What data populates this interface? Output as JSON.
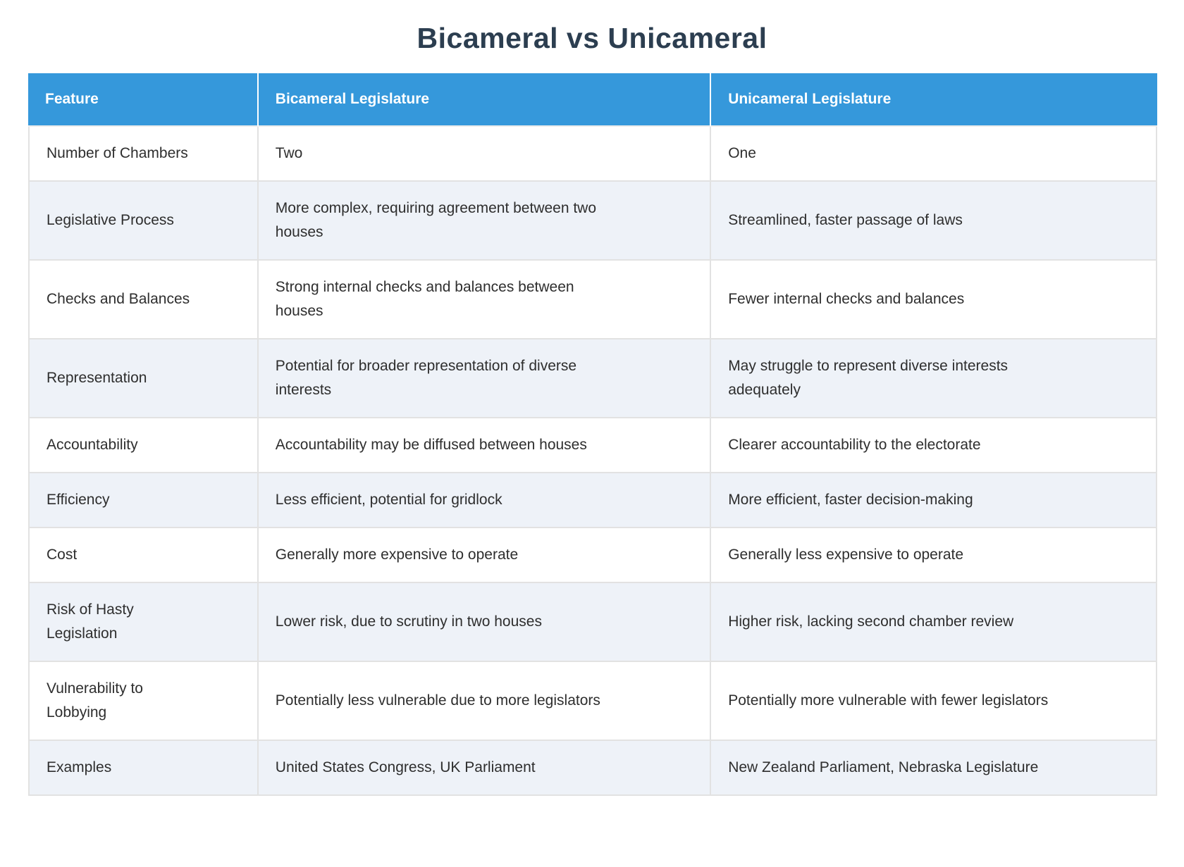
{
  "title": "Bicameral vs Unicameral",
  "colors": {
    "header_bg": "#3598db",
    "header_text": "#ffffff",
    "title_text": "#2c3e50",
    "row_alt_bg": "#eef2f8",
    "border": "#e2e2e2",
    "cell_text": "#2e2e2e"
  },
  "table": {
    "columns": [
      "Feature",
      "Bicameral Legislature",
      "Unicameral Legislature"
    ],
    "rows": [
      {
        "feature": "Number of Chambers",
        "bicameral": "Two",
        "unicameral": "One"
      },
      {
        "feature": "Legislative Process",
        "bicameral": "More complex, requiring agreement between two\nhouses",
        "unicameral": "Streamlined, faster passage of laws"
      },
      {
        "feature": "Checks and Balances",
        "bicameral": "Strong internal checks and balances between\nhouses",
        "unicameral": "Fewer internal checks and balances"
      },
      {
        "feature": "Representation",
        "bicameral": "Potential for broader representation of diverse\ninterests",
        "unicameral": "May struggle to represent diverse interests\nadequately"
      },
      {
        "feature": "Accountability",
        "bicameral": "Accountability may be diffused between houses",
        "unicameral": "Clearer accountability to the electorate"
      },
      {
        "feature": "Efficiency",
        "bicameral": "Less efficient, potential for gridlock",
        "unicameral": "More efficient, faster decision-making"
      },
      {
        "feature": "Cost",
        "bicameral": "Generally more expensive to operate",
        "unicameral": "Generally less expensive to operate"
      },
      {
        "feature": "Risk of Hasty\nLegislation",
        "bicameral": "Lower risk, due to scrutiny in two houses",
        "unicameral": "Higher risk, lacking second chamber review"
      },
      {
        "feature": "Vulnerability to\nLobbying",
        "bicameral": "Potentially less vulnerable due to more legislators",
        "unicameral": "Potentially more vulnerable with fewer legislators"
      },
      {
        "feature": "Examples",
        "bicameral": "United States Congress, UK Parliament",
        "unicameral": "New Zealand Parliament, Nebraska Legislature"
      }
    ]
  }
}
